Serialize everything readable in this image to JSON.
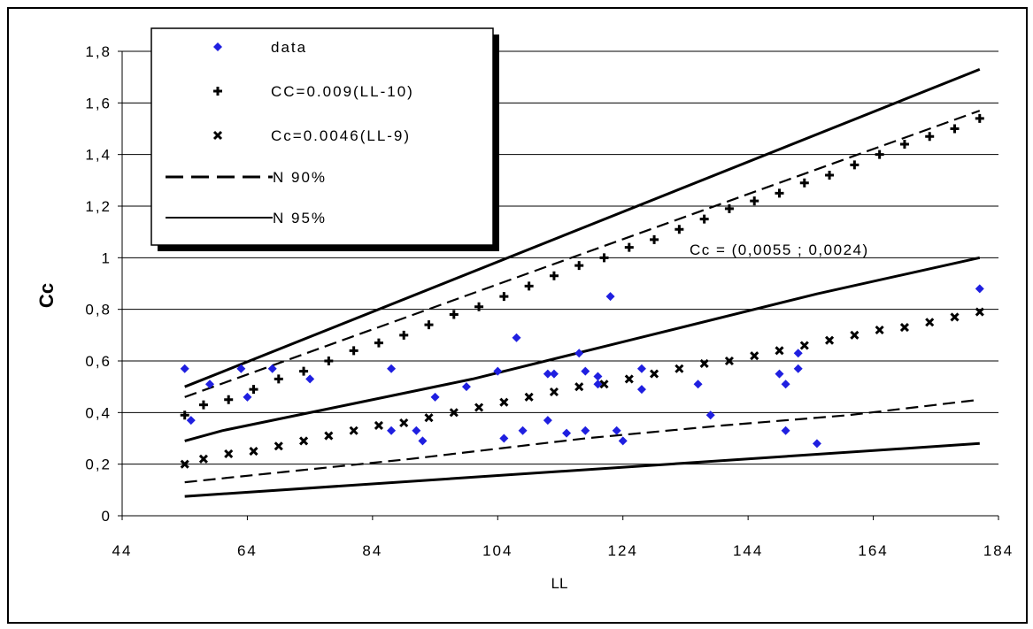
{
  "chart_data": {
    "type": "scatter",
    "title": "",
    "xlabel": "LL",
    "ylabel": "Cc",
    "xlim": [
      44,
      184
    ],
    "ylim": [
      0,
      1.8
    ],
    "x_ticks": [
      "44",
      "64",
      "84",
      "104",
      "124",
      "144",
      "164",
      "184"
    ],
    "y_ticks": [
      "0",
      "0,2",
      "0,4",
      "0,6",
      "0,8",
      "1",
      "1,2",
      "1,4",
      "1,6",
      "1,8"
    ],
    "grid": "horizontal",
    "legend_position": "top-left",
    "annotation": "Cc = (0,0055 ; 0,0024)",
    "colors": {
      "data": "#1f1fe0",
      "lines": "#000000"
    },
    "series": [
      {
        "name": "data",
        "style": "diamond",
        "points": [
          [
            54,
            0.57
          ],
          [
            55,
            0.37
          ],
          [
            58,
            0.51
          ],
          [
            63,
            0.57
          ],
          [
            64,
            0.46
          ],
          [
            68,
            0.57
          ],
          [
            74,
            0.53
          ],
          [
            87,
            0.57
          ],
          [
            87,
            0.33
          ],
          [
            91,
            0.33
          ],
          [
            92,
            0.29
          ],
          [
            94,
            0.46
          ],
          [
            99,
            0.5
          ],
          [
            104,
            0.56
          ],
          [
            105,
            0.3
          ],
          [
            107,
            0.69
          ],
          [
            108,
            0.33
          ],
          [
            112,
            0.55
          ],
          [
            112,
            0.37
          ],
          [
            113,
            0.55
          ],
          [
            115,
            0.32
          ],
          [
            117,
            0.63
          ],
          [
            118,
            0.56
          ],
          [
            118,
            0.33
          ],
          [
            120,
            0.51
          ],
          [
            120,
            0.54
          ],
          [
            122,
            0.85
          ],
          [
            123,
            0.33
          ],
          [
            124,
            0.29
          ],
          [
            127,
            0.57
          ],
          [
            127,
            0.49
          ],
          [
            136,
            0.51
          ],
          [
            138,
            0.39
          ],
          [
            149,
            0.55
          ],
          [
            150,
            0.51
          ],
          [
            150,
            0.33
          ],
          [
            152,
            0.63
          ],
          [
            152,
            0.57
          ],
          [
            155,
            0.28
          ],
          [
            181,
            0.88
          ]
        ]
      },
      {
        "name": "CC=0.009(LL-10)",
        "style": "plus",
        "points": [
          [
            54,
            0.39
          ],
          [
            57,
            0.43
          ],
          [
            61,
            0.45
          ],
          [
            65,
            0.49
          ],
          [
            69,
            0.53
          ],
          [
            73,
            0.56
          ],
          [
            77,
            0.6
          ],
          [
            81,
            0.64
          ],
          [
            85,
            0.67
          ],
          [
            89,
            0.7
          ],
          [
            93,
            0.74
          ],
          [
            97,
            0.78
          ],
          [
            101,
            0.81
          ],
          [
            105,
            0.85
          ],
          [
            109,
            0.89
          ],
          [
            113,
            0.93
          ],
          [
            117,
            0.97
          ],
          [
            121,
            1.0
          ],
          [
            125,
            1.04
          ],
          [
            129,
            1.07
          ],
          [
            133,
            1.11
          ],
          [
            137,
            1.15
          ],
          [
            141,
            1.19
          ],
          [
            145,
            1.22
          ],
          [
            149,
            1.25
          ],
          [
            153,
            1.29
          ],
          [
            157,
            1.32
          ],
          [
            161,
            1.36
          ],
          [
            165,
            1.4
          ],
          [
            169,
            1.44
          ],
          [
            173,
            1.47
          ],
          [
            177,
            1.5
          ],
          [
            181,
            1.54
          ]
        ]
      },
      {
        "name": "Cc=0.0046(LL-9)",
        "style": "cross",
        "points": [
          [
            54,
            0.2
          ],
          [
            57,
            0.22
          ],
          [
            61,
            0.24
          ],
          [
            65,
            0.25
          ],
          [
            69,
            0.27
          ],
          [
            73,
            0.29
          ],
          [
            77,
            0.31
          ],
          [
            81,
            0.33
          ],
          [
            85,
            0.35
          ],
          [
            89,
            0.36
          ],
          [
            93,
            0.38
          ],
          [
            97,
            0.4
          ],
          [
            101,
            0.42
          ],
          [
            105,
            0.44
          ],
          [
            109,
            0.46
          ],
          [
            113,
            0.48
          ],
          [
            117,
            0.5
          ],
          [
            121,
            0.51
          ],
          [
            125,
            0.53
          ],
          [
            129,
            0.55
          ],
          [
            133,
            0.57
          ],
          [
            137,
            0.59
          ],
          [
            141,
            0.6
          ],
          [
            145,
            0.62
          ],
          [
            149,
            0.64
          ],
          [
            153,
            0.66
          ],
          [
            157,
            0.68
          ],
          [
            161,
            0.7
          ],
          [
            165,
            0.72
          ],
          [
            169,
            0.73
          ],
          [
            173,
            0.75
          ],
          [
            177,
            0.77
          ],
          [
            181,
            0.79
          ]
        ]
      },
      {
        "name": "N 90%",
        "style": "dashed",
        "lines": [
          [
            [
              54,
              0.46
            ],
            [
              181,
              1.57
            ]
          ],
          [
            [
              54,
              0.13
            ],
            [
              70,
              0.17
            ],
            [
              90,
              0.22
            ],
            [
              118,
              0.3
            ],
            [
              140,
              0.35
            ],
            [
              160,
              0.39
            ],
            [
              181,
              0.45
            ]
          ]
        ]
      },
      {
        "name": "N 95%",
        "style": "solid",
        "lines": [
          [
            [
              54,
              0.5
            ],
            [
              181,
              1.73
            ]
          ],
          [
            [
              54,
              0.29
            ],
            [
              60,
              0.33
            ],
            [
              80,
              0.43
            ],
            [
              100,
              0.53
            ],
            [
              125,
              0.68
            ],
            [
              155,
              0.86
            ],
            [
              181,
              1.0
            ]
          ],
          [
            [
              54,
              0.075
            ],
            [
              181,
              0.28
            ]
          ]
        ]
      }
    ]
  }
}
